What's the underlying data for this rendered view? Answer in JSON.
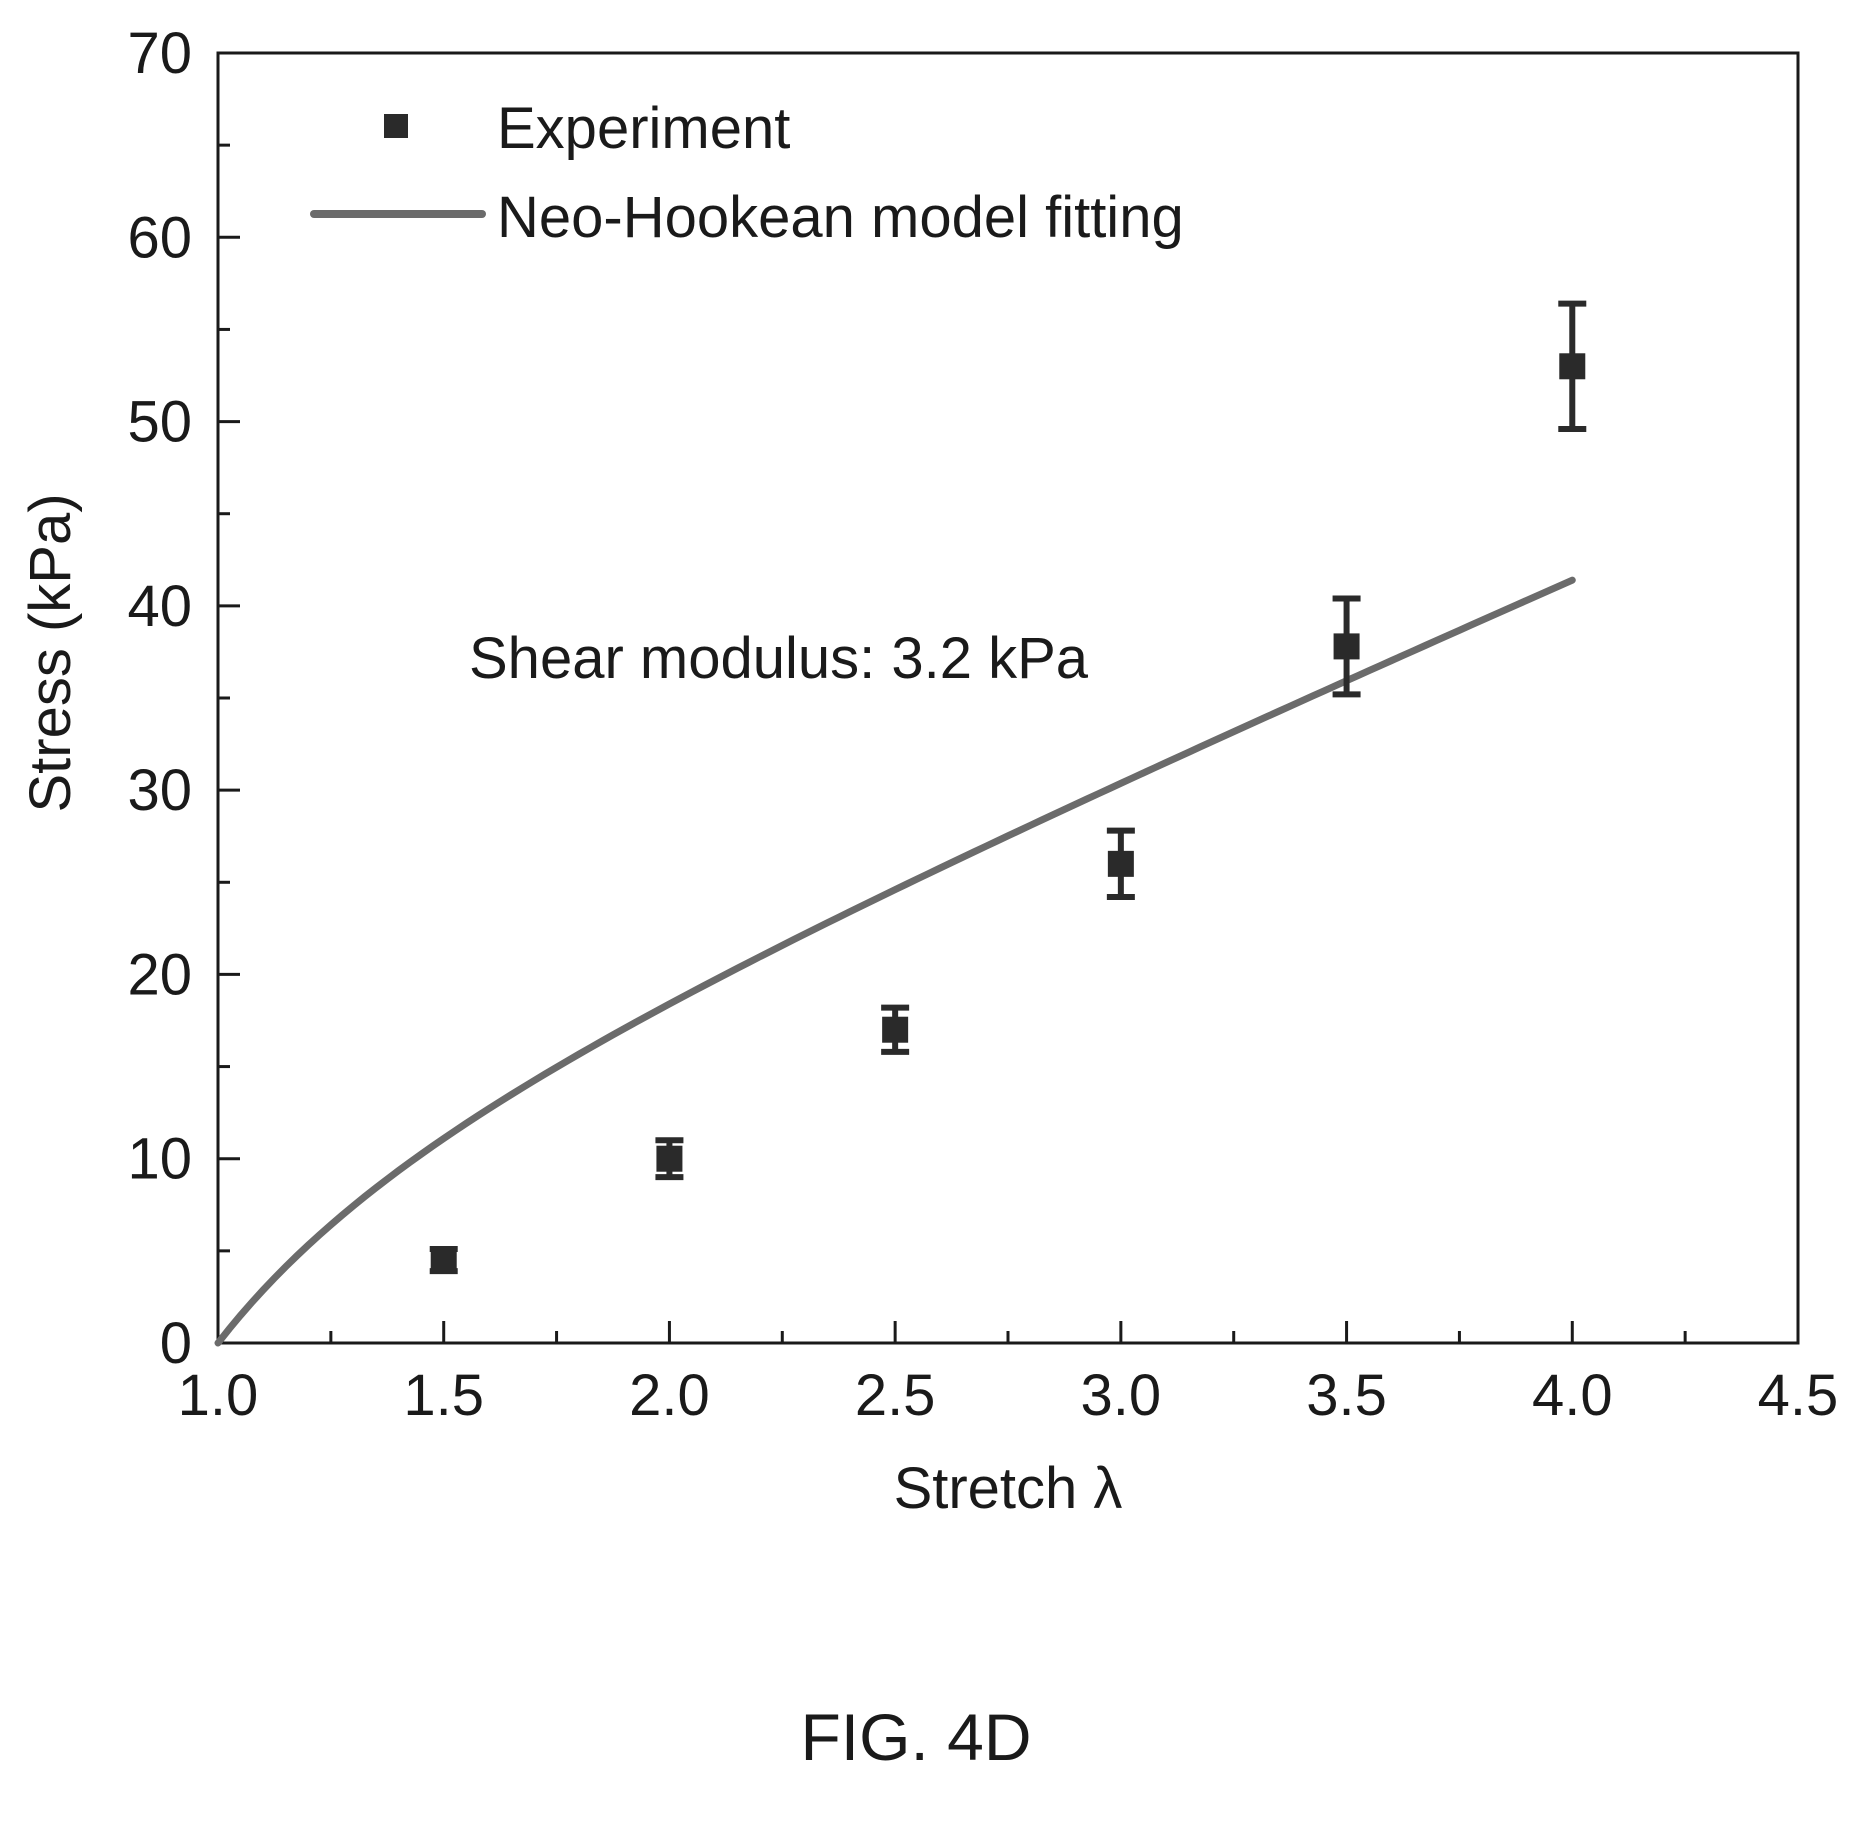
{
  "chart_data": {
    "type": "scatter",
    "xlabel": "Stretch λ",
    "ylabel": "Stress (kPa)",
    "xlim": [
      1.0,
      4.5
    ],
    "ylim": [
      0,
      70
    ],
    "x_ticks": [
      "1.0",
      "1.5",
      "2.0",
      "2.5",
      "3.0",
      "3.5",
      "4.0",
      "4.5"
    ],
    "y_ticks": [
      "0",
      "10",
      "20",
      "30",
      "40",
      "50",
      "60",
      "70"
    ],
    "grid": false,
    "legend_position": "top-left",
    "series": [
      {
        "name": "Experiment",
        "kind": "points-with-error-bars",
        "marker": "square",
        "color": "#2a2a2a",
        "points": [
          {
            "x": 1.5,
            "y": 4.5,
            "err": 0.6
          },
          {
            "x": 2.0,
            "y": 10.0,
            "err": 1.0
          },
          {
            "x": 2.5,
            "y": 17.0,
            "err": 1.2
          },
          {
            "x": 3.0,
            "y": 26.0,
            "err": 1.8
          },
          {
            "x": 3.5,
            "y": 37.8,
            "err": 2.6
          },
          {
            "x": 4.0,
            "y": 53.0,
            "err": 3.4
          }
        ]
      },
      {
        "name": "Neo-Hookean model fitting",
        "kind": "line",
        "color": "#6b6b6b",
        "x_range": [
          1.0,
          4.0
        ]
      }
    ],
    "annotation": "Shear modulus: 3.2 kPa"
  },
  "caption": "FIG. 4D"
}
